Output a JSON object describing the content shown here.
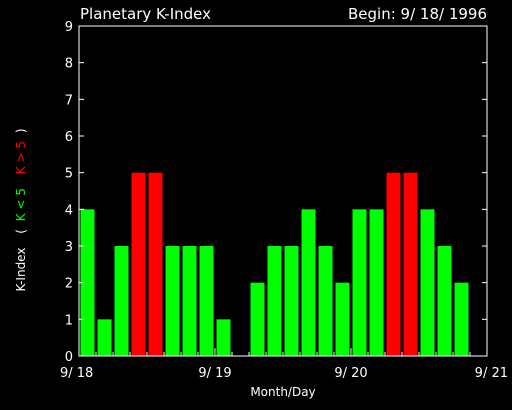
{
  "header": {
    "title": "Planetary K-Index",
    "begin": "Begin: 9/ 18/ 1996"
  },
  "chart_data": {
    "type": "bar",
    "title": "Planetary K-Index",
    "xlabel": "Month/Day",
    "ylabel": "K-Index",
    "ylim": [
      0,
      9
    ],
    "y_ticks": [
      "0",
      "1",
      "2",
      "3",
      "4",
      "5",
      "6",
      "7",
      "8",
      "9"
    ],
    "x_tick_labels": [
      "9/ 18",
      "9/ 19",
      "9/ 20",
      "9/ 21"
    ],
    "interval_hours": 3,
    "values": [
      4,
      1,
      3,
      5,
      5,
      3,
      3,
      3,
      1,
      0,
      2,
      3,
      3,
      4,
      3,
      2,
      4,
      4,
      5,
      5,
      4,
      3,
      2,
      0
    ],
    "legend": {
      "open": "(",
      "low": "K < 5",
      "high": "K > 5",
      "close": ")"
    },
    "colors": {
      "low": "#00ff00",
      "high": "#ff0000",
      "axes": "#ffffff",
      "background": "#000000"
    }
  }
}
